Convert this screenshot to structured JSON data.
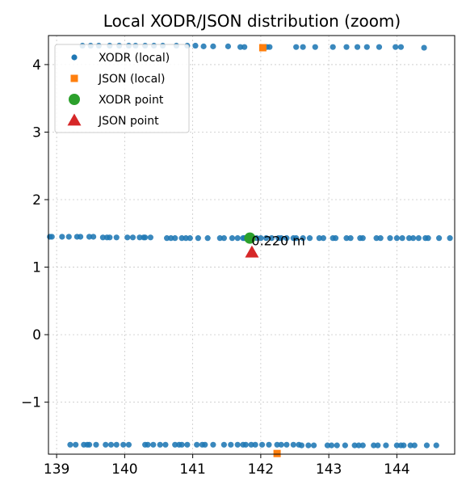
{
  "chart_data": {
    "type": "scatter",
    "title": "Local XODR/JSON distribution (zoom)",
    "xlabel": "",
    "ylabel": "",
    "xlim": [
      138.88,
      144.85
    ],
    "ylim": [
      -1.77,
      4.43
    ],
    "xticks": [
      139,
      140,
      141,
      142,
      143,
      144
    ],
    "yticks": [
      -1,
      0,
      1,
      2,
      3,
      4
    ],
    "xtick_labels": [
      "139",
      "140",
      "141",
      "142",
      "143",
      "144"
    ],
    "ytick_labels": [
      "−1",
      "0",
      "1",
      "2",
      "3",
      "4"
    ],
    "grid": true,
    "legend_position": "top-left",
    "series": [
      {
        "name": "XODR (local)",
        "marker": "circle",
        "color": "#1f77b4",
        "points": [
          [
            139.38,
            4.28
          ],
          [
            139.5,
            4.28
          ],
          [
            139.62,
            4.28
          ],
          [
            139.78,
            4.28
          ],
          [
            139.92,
            4.28
          ],
          [
            140.06,
            4.28
          ],
          [
            140.16,
            4.28
          ],
          [
            140.3,
            4.28
          ],
          [
            140.43,
            4.28
          ],
          [
            140.56,
            4.28
          ],
          [
            140.76,
            4.28
          ],
          [
            140.92,
            4.28
          ],
          [
            141.04,
            4.28
          ],
          [
            141.16,
            4.27
          ],
          [
            141.3,
            4.27
          ],
          [
            141.52,
            4.27
          ],
          [
            141.7,
            4.26
          ],
          [
            141.76,
            4.26
          ],
          [
            142.09,
            4.26
          ],
          [
            142.13,
            4.26
          ],
          [
            142.52,
            4.26
          ],
          [
            142.62,
            4.26
          ],
          [
            142.8,
            4.26
          ],
          [
            143.06,
            4.26
          ],
          [
            143.26,
            4.26
          ],
          [
            143.42,
            4.26
          ],
          [
            143.56,
            4.26
          ],
          [
            143.74,
            4.26
          ],
          [
            143.98,
            4.26
          ],
          [
            144.06,
            4.26
          ],
          [
            144.4,
            4.25
          ],
          [
            138.9,
            1.45
          ],
          [
            138.93,
            1.45
          ],
          [
            139.08,
            1.45
          ],
          [
            139.18,
            1.45
          ],
          [
            139.3,
            1.45
          ],
          [
            139.35,
            1.45
          ],
          [
            139.48,
            1.45
          ],
          [
            139.54,
            1.45
          ],
          [
            139.68,
            1.44
          ],
          [
            139.74,
            1.44
          ],
          [
            139.78,
            1.44
          ],
          [
            139.88,
            1.44
          ],
          [
            140.04,
            1.44
          ],
          [
            140.12,
            1.44
          ],
          [
            140.22,
            1.44
          ],
          [
            140.28,
            1.44
          ],
          [
            140.3,
            1.44
          ],
          [
            140.38,
            1.44
          ],
          [
            140.62,
            1.43
          ],
          [
            140.68,
            1.43
          ],
          [
            140.74,
            1.43
          ],
          [
            140.84,
            1.43
          ],
          [
            140.9,
            1.43
          ],
          [
            140.96,
            1.43
          ],
          [
            141.08,
            1.43
          ],
          [
            141.22,
            1.43
          ],
          [
            141.4,
            1.43
          ],
          [
            141.46,
            1.43
          ],
          [
            141.58,
            1.43
          ],
          [
            141.66,
            1.43
          ],
          [
            141.74,
            1.43
          ],
          [
            141.76,
            1.43
          ],
          [
            141.94,
            1.43
          ],
          [
            142.0,
            1.43
          ],
          [
            142.08,
            1.43
          ],
          [
            142.16,
            1.43
          ],
          [
            142.26,
            1.43
          ],
          [
            142.3,
            1.43
          ],
          [
            142.38,
            1.43
          ],
          [
            142.48,
            1.43
          ],
          [
            142.52,
            1.43
          ],
          [
            142.62,
            1.43
          ],
          [
            142.72,
            1.43
          ],
          [
            142.86,
            1.43
          ],
          [
            142.92,
            1.43
          ],
          [
            143.06,
            1.43
          ],
          [
            143.1,
            1.43
          ],
          [
            143.26,
            1.43
          ],
          [
            143.32,
            1.43
          ],
          [
            143.46,
            1.43
          ],
          [
            143.5,
            1.43
          ],
          [
            143.7,
            1.43
          ],
          [
            143.76,
            1.43
          ],
          [
            143.9,
            1.43
          ],
          [
            144.0,
            1.43
          ],
          [
            144.08,
            1.43
          ],
          [
            144.18,
            1.43
          ],
          [
            144.24,
            1.43
          ],
          [
            144.32,
            1.43
          ],
          [
            144.42,
            1.43
          ],
          [
            144.46,
            1.43
          ],
          [
            144.62,
            1.43
          ],
          [
            144.78,
            1.43
          ],
          [
            139.2,
            -1.63
          ],
          [
            139.28,
            -1.63
          ],
          [
            139.4,
            -1.63
          ],
          [
            139.45,
            -1.63
          ],
          [
            139.48,
            -1.63
          ],
          [
            139.58,
            -1.63
          ],
          [
            139.72,
            -1.63
          ],
          [
            139.8,
            -1.63
          ],
          [
            139.88,
            -1.63
          ],
          [
            139.98,
            -1.63
          ],
          [
            140.06,
            -1.63
          ],
          [
            140.3,
            -1.63
          ],
          [
            140.34,
            -1.63
          ],
          [
            140.42,
            -1.63
          ],
          [
            140.52,
            -1.63
          ],
          [
            140.6,
            -1.63
          ],
          [
            140.74,
            -1.63
          ],
          [
            140.8,
            -1.63
          ],
          [
            140.84,
            -1.63
          ],
          [
            140.92,
            -1.63
          ],
          [
            141.06,
            -1.63
          ],
          [
            141.14,
            -1.63
          ],
          [
            141.18,
            -1.63
          ],
          [
            141.3,
            -1.63
          ],
          [
            141.46,
            -1.63
          ],
          [
            141.56,
            -1.63
          ],
          [
            141.66,
            -1.63
          ],
          [
            141.74,
            -1.63
          ],
          [
            141.78,
            -1.63
          ],
          [
            141.86,
            -1.63
          ],
          [
            141.92,
            -1.63
          ],
          [
            142.02,
            -1.63
          ],
          [
            142.12,
            -1.63
          ],
          [
            142.24,
            -1.63
          ],
          [
            142.3,
            -1.63
          ],
          [
            142.38,
            -1.63
          ],
          [
            142.48,
            -1.63
          ],
          [
            142.56,
            -1.63
          ],
          [
            142.6,
            -1.64
          ],
          [
            142.7,
            -1.64
          ],
          [
            142.78,
            -1.64
          ],
          [
            142.98,
            -1.64
          ],
          [
            143.04,
            -1.64
          ],
          [
            143.12,
            -1.64
          ],
          [
            143.24,
            -1.64
          ],
          [
            143.38,
            -1.64
          ],
          [
            143.44,
            -1.64
          ],
          [
            143.5,
            -1.64
          ],
          [
            143.66,
            -1.64
          ],
          [
            143.72,
            -1.64
          ],
          [
            143.84,
            -1.64
          ],
          [
            144.0,
            -1.64
          ],
          [
            144.06,
            -1.64
          ],
          [
            144.1,
            -1.64
          ],
          [
            144.2,
            -1.64
          ],
          [
            144.26,
            -1.64
          ],
          [
            144.44,
            -1.64
          ],
          [
            144.58,
            -1.64
          ]
        ]
      },
      {
        "name": "JSON (local)",
        "marker": "square",
        "color": "#ff7f0e",
        "points": [
          [
            142.03,
            4.25
          ],
          [
            142.24,
            -1.76
          ]
        ]
      },
      {
        "name": "XODR point",
        "marker": "circle-large",
        "color": "#2ca02c",
        "points": [
          [
            141.84,
            1.43
          ]
        ]
      },
      {
        "name": "JSON point",
        "marker": "triangle",
        "color": "#d62728",
        "points": [
          [
            141.87,
            1.22
          ]
        ]
      }
    ],
    "annotations": [
      {
        "text": "0.220 m",
        "x": 141.84,
        "y": 1.43
      }
    ]
  }
}
